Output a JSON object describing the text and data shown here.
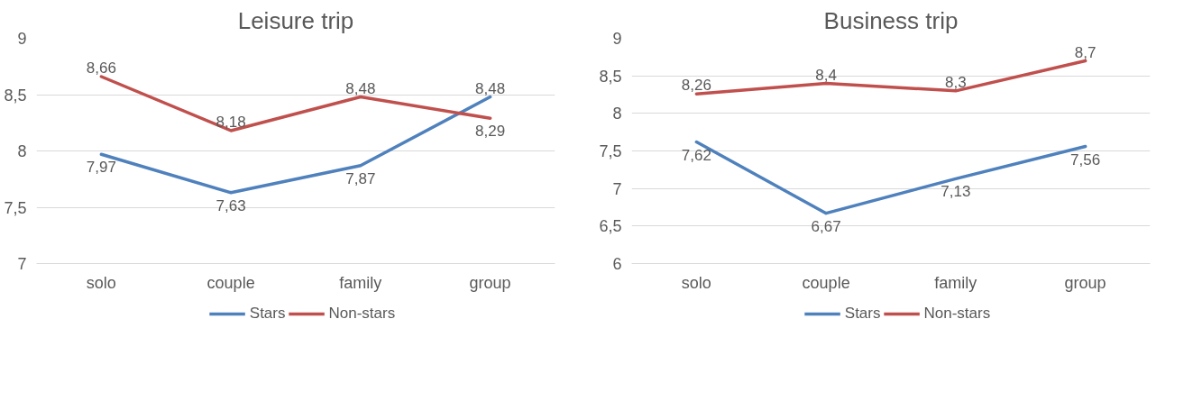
{
  "chart_data": [
    {
      "type": "line",
      "title": "Leisure trip",
      "categories": [
        "solo",
        "couple",
        "family",
        "group"
      ],
      "ylim": [
        7,
        9
      ],
      "yticks": [
        7,
        {
          "value": 7.5,
          "label": "7,5"
        },
        8,
        {
          "value": 8.5,
          "label": "8,5"
        },
        9
      ],
      "grid": "y",
      "legend": "bottom",
      "marker": "none",
      "line_style": "solid",
      "series": [
        {
          "name": "Stars",
          "color": "#4f81bd",
          "values": [
            7.97,
            7.63,
            7.87,
            8.48
          ],
          "value_labels": [
            "7,97",
            "7,63",
            "7,87",
            "8,48"
          ]
        },
        {
          "name": "Non-stars",
          "color": "#c0504d",
          "values": [
            8.66,
            8.18,
            8.48,
            8.29
          ],
          "value_labels": [
            "8,66",
            "8,18",
            "8,48",
            "8,29"
          ]
        }
      ]
    },
    {
      "type": "line",
      "title": "Business trip",
      "categories": [
        "solo",
        "couple",
        "family",
        "group"
      ],
      "ylim": [
        6,
        9
      ],
      "yticks": [
        6,
        {
          "value": 6.5,
          "label": "6,5"
        },
        7,
        {
          "value": 7.5,
          "label": "7,5"
        },
        8,
        {
          "value": 8.5,
          "label": "8,5"
        },
        9
      ],
      "grid": "y",
      "legend": "bottom",
      "marker": "none",
      "line_style": "solid",
      "series": [
        {
          "name": "Stars",
          "color": "#4f81bd",
          "values": [
            7.62,
            6.67,
            7.13,
            7.56
          ],
          "value_labels": [
            "7,62",
            "6,67",
            "7,13",
            "7,56"
          ]
        },
        {
          "name": "Non-stars",
          "color": "#c0504d",
          "values": [
            8.26,
            8.4,
            8.3,
            8.7
          ],
          "value_labels": [
            "8,26",
            "8,4",
            "8,3",
            "8,7"
          ]
        }
      ]
    }
  ]
}
